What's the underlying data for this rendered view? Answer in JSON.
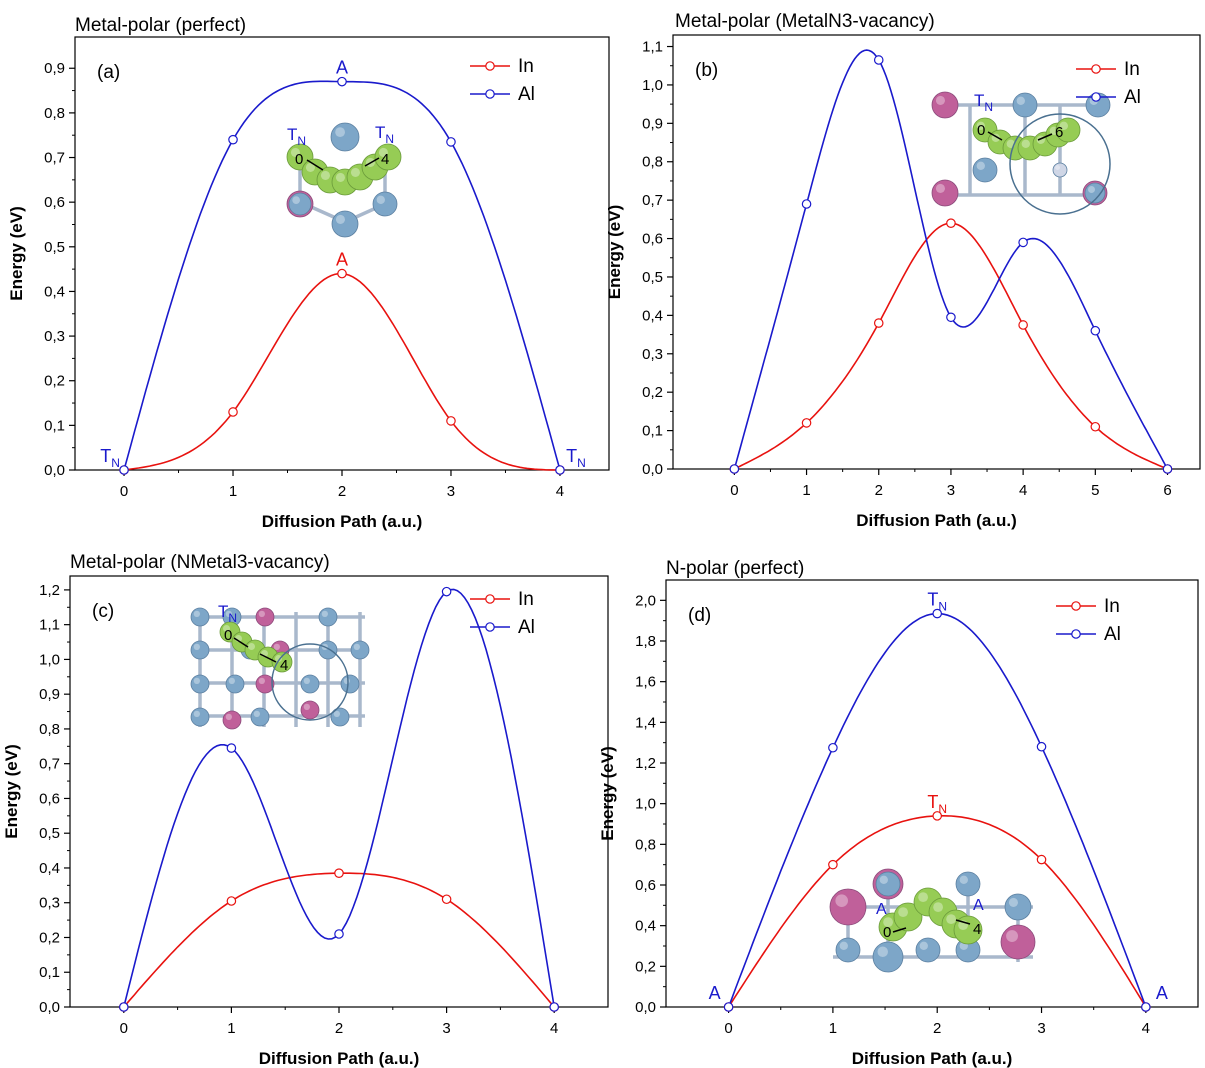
{
  "chart_data": [
    {
      "type": "line",
      "panel_label": "(a)",
      "title": "Metal-polar (perfect)",
      "xlabel": "Diffusion Path (a.u.)",
      "ylabel": "Energy (eV)",
      "xlim": [
        -0.45,
        4.45
      ],
      "ylim": [
        0,
        0.97
      ],
      "xticks": [
        0,
        1,
        2,
        3,
        4
      ],
      "yticks": [
        "0,0",
        "0,1",
        "0,2",
        "0,3",
        "0,4",
        "0,5",
        "0,6",
        "0,7",
        "0,8",
        "0,9"
      ],
      "ytick_values": [
        0,
        0.1,
        0.2,
        0.3,
        0.4,
        0.5,
        0.6,
        0.7,
        0.8,
        0.9
      ],
      "legend_position": "top-right",
      "series": [
        {
          "name": "In",
          "color": "#e8120f",
          "x": [
            0,
            1,
            2,
            3,
            4
          ],
          "values": [
            0.0,
            0.13,
            0.44,
            0.11,
            0.0
          ]
        },
        {
          "name": "Al",
          "color": "#1a1acc",
          "x": [
            0,
            1,
            2,
            3,
            4
          ],
          "values": [
            0.0,
            0.74,
            0.87,
            0.735,
            0.0
          ]
        }
      ],
      "annotations": [
        {
          "text": "A",
          "sub": "",
          "x": 2,
          "y": 0.87,
          "color": "#1a1acc"
        },
        {
          "text": "A",
          "sub": "",
          "x": 2,
          "y": 0.44,
          "color": "#e8120f"
        },
        {
          "text": "T",
          "sub": "N",
          "x": 0,
          "y": 0.0,
          "color": "#1a1acc"
        },
        {
          "text": "T",
          "sub": "N",
          "x": 4,
          "y": 0.0,
          "color": "#1a1acc"
        }
      ],
      "inset": {
        "labels": [
          "T",
          "T"
        ],
        "label_subs": [
          "N",
          "N"
        ],
        "numbers": [
          "0",
          "4"
        ]
      }
    },
    {
      "type": "line",
      "panel_label": "(b)",
      "title": "Metal-polar (MetalN3-vacancy)",
      "xlabel": "Diffusion Path (a.u.)",
      "ylabel": "Energy (eV)",
      "xlim": [
        -0.85,
        6.45
      ],
      "ylim": [
        0,
        1.13
      ],
      "xticks": [
        0,
        1,
        2,
        3,
        4,
        5,
        6
      ],
      "yticks": [
        "0,0",
        "0,1",
        "0,2",
        "0,3",
        "0,4",
        "0,5",
        "0,6",
        "0,7",
        "0,8",
        "0,9",
        "1,0",
        "1,1"
      ],
      "ytick_values": [
        0,
        0.1,
        0.2,
        0.3,
        0.4,
        0.5,
        0.6,
        0.7,
        0.8,
        0.9,
        1.0,
        1.1
      ],
      "legend_position": "top-right",
      "series": [
        {
          "name": "In",
          "color": "#e8120f",
          "x": [
            0,
            1,
            2,
            3,
            4,
            5,
            6
          ],
          "values": [
            0.0,
            0.12,
            0.38,
            0.64,
            0.375,
            0.11,
            0.0
          ]
        },
        {
          "name": "Al",
          "color": "#1a1acc",
          "x": [
            0,
            1,
            2,
            3,
            4,
            5,
            6
          ],
          "values": [
            0.0,
            0.69,
            1.065,
            0.395,
            0.59,
            0.36,
            0.0
          ]
        }
      ],
      "annotations": [],
      "inset": {
        "labels": [
          "T"
        ],
        "label_subs": [
          "N"
        ],
        "numbers": [
          "0",
          "6"
        ]
      }
    },
    {
      "type": "line",
      "panel_label": "(c)",
      "title": "Metal-polar (NMetal3-vacancy)",
      "xlabel": "Diffusion Path (a.u.)",
      "ylabel": "Energy (eV)",
      "xlim": [
        -0.5,
        4.5
      ],
      "ylim": [
        0,
        1.24
      ],
      "xticks": [
        0,
        1,
        2,
        3,
        4
      ],
      "yticks": [
        "0,0",
        "0,1",
        "0,2",
        "0,3",
        "0,4",
        "0,5",
        "0,6",
        "0,7",
        "0,8",
        "0,9",
        "1,0",
        "1,1",
        "1,2"
      ],
      "ytick_values": [
        0,
        0.1,
        0.2,
        0.3,
        0.4,
        0.5,
        0.6,
        0.7,
        0.8,
        0.9,
        1.0,
        1.1,
        1.2
      ],
      "legend_position": "top-right",
      "series": [
        {
          "name": "In",
          "color": "#e8120f",
          "x": [
            0,
            1,
            2,
            3,
            4
          ],
          "values": [
            0.0,
            0.305,
            0.385,
            0.31,
            0.0
          ]
        },
        {
          "name": "Al",
          "color": "#1a1acc",
          "x": [
            0,
            1,
            2,
            3,
            4
          ],
          "values": [
            0.0,
            0.745,
            0.21,
            1.195,
            0.0
          ]
        }
      ],
      "annotations": [],
      "inset": {
        "labels": [
          "T"
        ],
        "label_subs": [
          "N"
        ],
        "numbers": [
          "0",
          "4"
        ]
      }
    },
    {
      "type": "line",
      "panel_label": "(d)",
      "title": "N-polar (perfect)",
      "xlabel": "Diffusion Path (a.u.)",
      "ylabel": "Energy (eV)",
      "xlim": [
        -0.6,
        4.5
      ],
      "ylim": [
        0,
        2.1
      ],
      "xticks": [
        0,
        1,
        2,
        3,
        4
      ],
      "yticks": [
        "0,0",
        "0,2",
        "0,4",
        "0,6",
        "0,8",
        "1,0",
        "1,2",
        "1,4",
        "1,6",
        "1,8",
        "2,0"
      ],
      "ytick_values": [
        0,
        0.2,
        0.4,
        0.6,
        0.8,
        1.0,
        1.2,
        1.4,
        1.6,
        1.8,
        2.0
      ],
      "legend_position": "top-right",
      "series": [
        {
          "name": "In",
          "color": "#e8120f",
          "x": [
            0,
            1,
            2,
            3,
            4
          ],
          "values": [
            0.0,
            0.7,
            0.94,
            0.725,
            0.0
          ]
        },
        {
          "name": "Al",
          "color": "#1a1acc",
          "x": [
            0,
            1,
            2,
            3,
            4
          ],
          "values": [
            0.0,
            1.275,
            1.935,
            1.28,
            0.0
          ]
        }
      ],
      "annotations": [
        {
          "text": "T",
          "sub": "N",
          "x": 2,
          "y": 1.935,
          "color": "#1a1acc"
        },
        {
          "text": "T",
          "sub": "N",
          "x": 2,
          "y": 0.94,
          "color": "#e8120f"
        },
        {
          "text": "A",
          "sub": "",
          "x": 0,
          "y": 0.0,
          "color": "#1a1acc"
        },
        {
          "text": "A",
          "sub": "",
          "x": 4,
          "y": 0.0,
          "color": "#1a1acc"
        }
      ],
      "inset": {
        "labels": [
          "A",
          "A"
        ],
        "label_subs": [
          "",
          ""
        ],
        "numbers": [
          "0",
          "4"
        ]
      }
    }
  ]
}
